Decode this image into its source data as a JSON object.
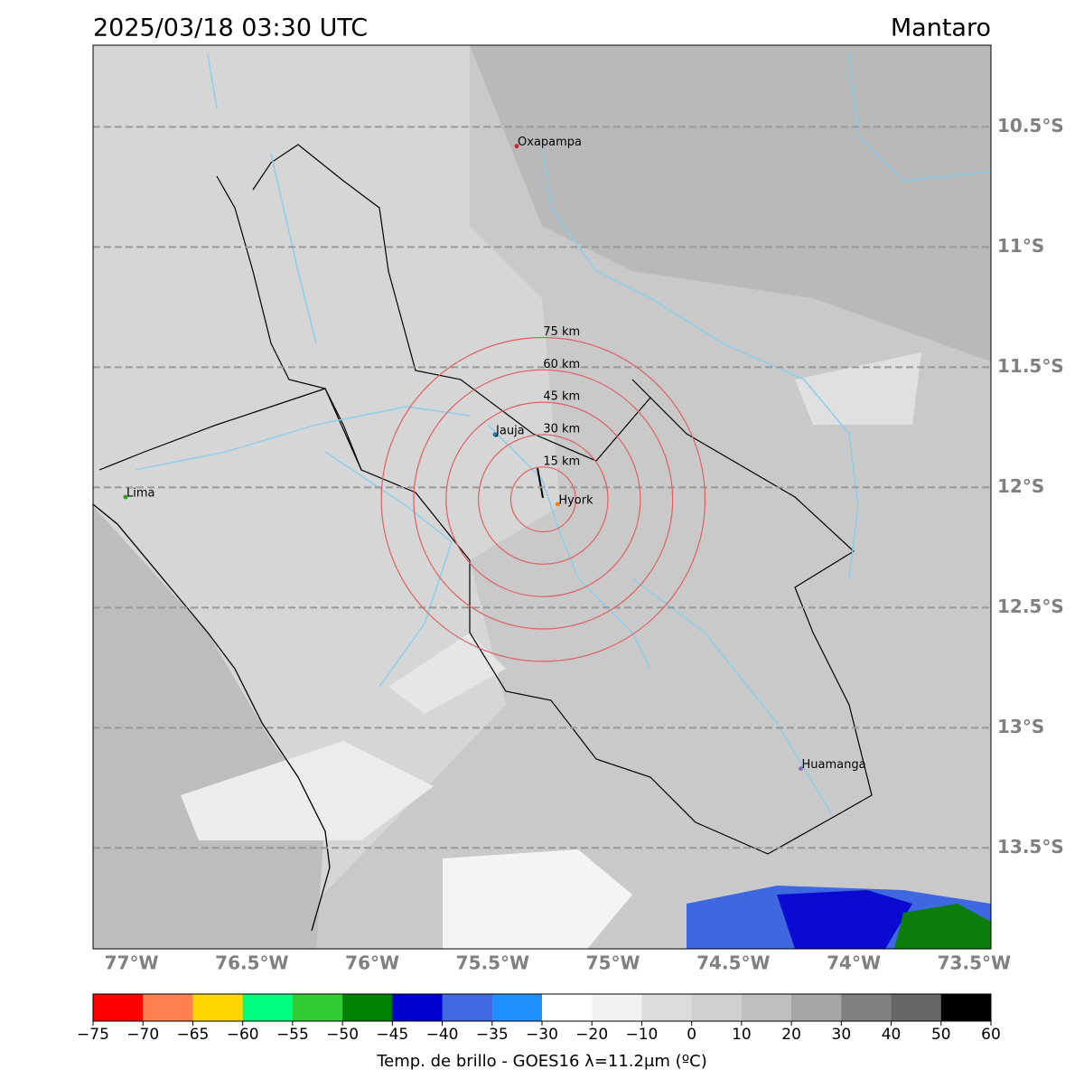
{
  "map": {
    "title": "2025/03/18 03:30 UTC",
    "region": "Mantaro",
    "xlim": [
      -77.16,
      -73.43
    ],
    "ylim": [
      -13.92,
      -10.16
    ],
    "lat_ticks": [
      {
        "value": -10.5,
        "label": "10.5°S"
      },
      {
        "value": -11,
        "label": "11°S"
      },
      {
        "value": -11.5,
        "label": "11.5°S"
      },
      {
        "value": -12,
        "label": "12°S"
      },
      {
        "value": -12.5,
        "label": "12.5°S"
      },
      {
        "value": -13,
        "label": "13°S"
      },
      {
        "value": -13.5,
        "label": "13.5°S"
      }
    ],
    "lon_ticks": [
      {
        "value": -77,
        "label": "77°W"
      },
      {
        "value": -76.5,
        "label": "76.5°W"
      },
      {
        "value": -76,
        "label": "76°W"
      },
      {
        "value": -75.5,
        "label": "75.5°W"
      },
      {
        "value": -75,
        "label": "75°W"
      },
      {
        "value": -74.5,
        "label": "74.5°W"
      },
      {
        "value": -74,
        "label": "74°W"
      },
      {
        "value": -73.5,
        "label": "73.5°W"
      }
    ],
    "cities": [
      {
        "name": "Oxapampa",
        "lon": -75.4,
        "lat": -10.58,
        "color": "#d62728"
      },
      {
        "name": "Jauja",
        "lon": -75.49,
        "lat": -11.78,
        "color": "#1f77b4"
      },
      {
        "name": "Hyork",
        "lon": -75.23,
        "lat": -12.07,
        "color": "#ff7f0e"
      },
      {
        "name": "Lima",
        "lon": -77.025,
        "lat": -12.04,
        "color": "#2ca02c"
      },
      {
        "name": "Huamanga",
        "lon": -74.22,
        "lat": -13.17,
        "color": "#9467bd"
      }
    ],
    "rings": {
      "center_lon": -75.29,
      "center_lat": -12.05,
      "color": "#e06060",
      "radii": [
        {
          "value": 15,
          "label": "15 km"
        },
        {
          "value": 30,
          "label": "30 km"
        },
        {
          "value": 45,
          "label": "45 km"
        },
        {
          "value": 60,
          "label": "60 km"
        },
        {
          "value": 75,
          "label": "75 km"
        }
      ]
    },
    "colorbar": {
      "label": "Temp. de brillo - GOES16 λ=11.2μm (ºC)",
      "ticks": [
        {
          "value": -75,
          "label": "−75"
        },
        {
          "value": -70,
          "label": "−70"
        },
        {
          "value": -65,
          "label": "−65"
        },
        {
          "value": -60,
          "label": "−60"
        },
        {
          "value": -55,
          "label": "−55"
        },
        {
          "value": -50,
          "label": "−50"
        },
        {
          "value": -45,
          "label": "−45"
        },
        {
          "value": -40,
          "label": "−40"
        },
        {
          "value": -35,
          "label": "−35"
        },
        {
          "value": -30,
          "label": "−30"
        },
        {
          "value": -20,
          "label": "−20"
        },
        {
          "value": -10,
          "label": "−10"
        },
        0,
        10,
        20,
        30,
        40,
        50,
        60
      ],
      "colors": [
        "#ff0000",
        "#ff7f50",
        "#ffd700",
        "#00ff7f",
        "#32cd32",
        "#008000",
        "#0000cd",
        "#4169e1",
        "#1e90ff",
        "#ffffff",
        "#f2f2f2",
        "#dcdcdc",
        "#d0d0d0",
        "#bfbfbf",
        "#a6a6a6",
        "#808080",
        "#666666",
        "#000000"
      ]
    }
  }
}
